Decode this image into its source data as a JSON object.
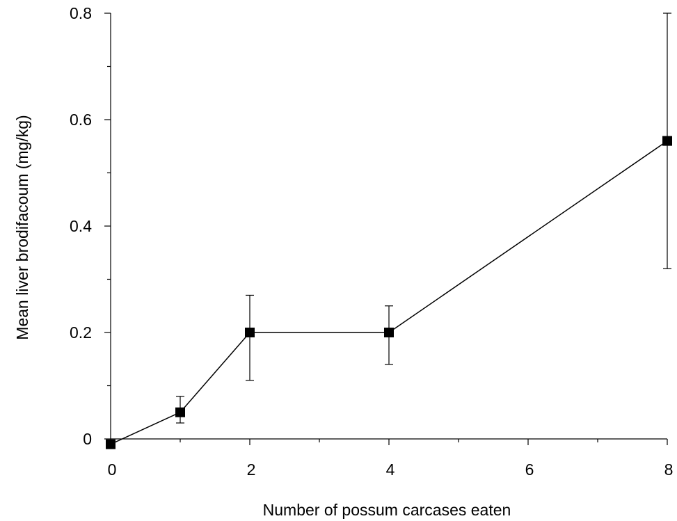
{
  "chart_data": {
    "type": "line",
    "title": "",
    "xlabel": "Number of possum carcases eaten",
    "ylabel": "Mean liver brodifacoum (mg/kg)",
    "xlim": [
      0,
      8
    ],
    "ylim": [
      0,
      0.8
    ],
    "x_ticks": [
      0,
      2,
      4,
      6,
      8
    ],
    "x_tick_labels": [
      "0",
      "2",
      "4",
      "6",
      "8"
    ],
    "y_ticks": [
      0,
      0.2,
      0.4,
      0.6,
      0.8
    ],
    "y_tick_labels": [
      "0",
      "0.2",
      "0.4",
      "0.6",
      "0.8"
    ],
    "grid": false,
    "legend": "none",
    "series": [
      {
        "x": [
          0,
          1,
          2,
          4,
          8
        ],
        "y": [
          -0.01,
          0.05,
          0.2,
          0.2,
          0.56
        ],
        "error_low": [
          -0.01,
          0.03,
          0.11,
          0.14,
          0.32
        ],
        "error_high": [
          -0.01,
          0.08,
          0.27,
          0.25,
          0.8
        ],
        "marker": "square",
        "color": "#000000"
      }
    ]
  }
}
